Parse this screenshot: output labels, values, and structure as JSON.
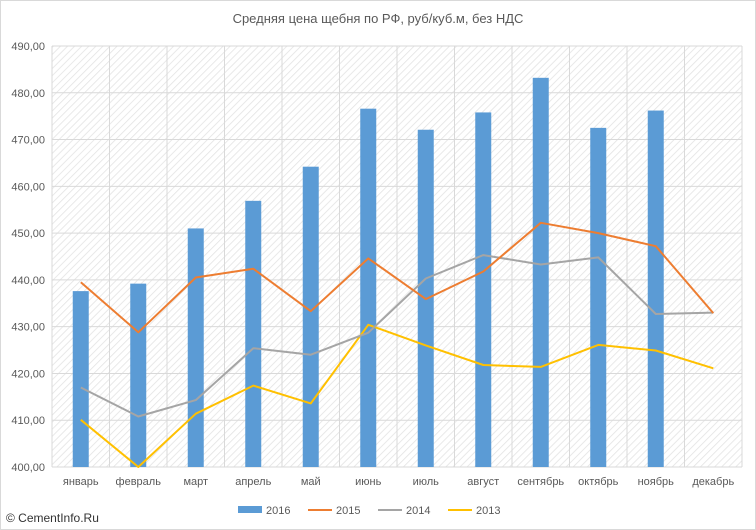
{
  "watermark": "© CementInfo.Ru",
  "chart_data": {
    "type": "bar",
    "title": "Средняя цена щебня по РФ, руб/куб.м, без НДС",
    "xlabel": "",
    "ylabel": "",
    "categories": [
      "январь",
      "февраль",
      "март",
      "апрель",
      "май",
      "июнь",
      "июль",
      "август",
      "сентябрь",
      "октябрь",
      "ноябрь",
      "декабрь"
    ],
    "ylim": [
      400,
      490
    ],
    "yticks": [
      "400,00",
      "410,00",
      "420,00",
      "430,00",
      "440,00",
      "450,00",
      "460,00",
      "470,00",
      "480,00",
      "490,00"
    ],
    "grid": true,
    "legend": "bottom",
    "series": [
      {
        "name": "2016",
        "type": "bar",
        "color": "#5b9bd5",
        "values": [
          437.6,
          439.2,
          451.0,
          456.9,
          464.2,
          476.6,
          472.1,
          475.8,
          483.2,
          472.5,
          476.2,
          null
        ]
      },
      {
        "name": "2015",
        "type": "line",
        "color": "#ed7d31",
        "values": [
          439.5,
          428.8,
          440.5,
          442.4,
          433.3,
          444.6,
          435.9,
          441.8,
          452.2,
          450.0,
          447.2,
          432.9
        ]
      },
      {
        "name": "2014",
        "type": "line",
        "color": "#a5a5a5",
        "values": [
          417.0,
          410.8,
          414.3,
          425.4,
          424.0,
          428.7,
          440.3,
          445.3,
          443.3,
          444.8,
          432.7,
          433.0
        ]
      },
      {
        "name": "2013",
        "type": "line",
        "color": "#ffc000",
        "values": [
          410.1,
          399.5,
          411.4,
          417.4,
          413.6,
          430.4,
          426.0,
          421.8,
          421.4,
          426.1,
          424.9,
          421.1
        ]
      }
    ]
  }
}
